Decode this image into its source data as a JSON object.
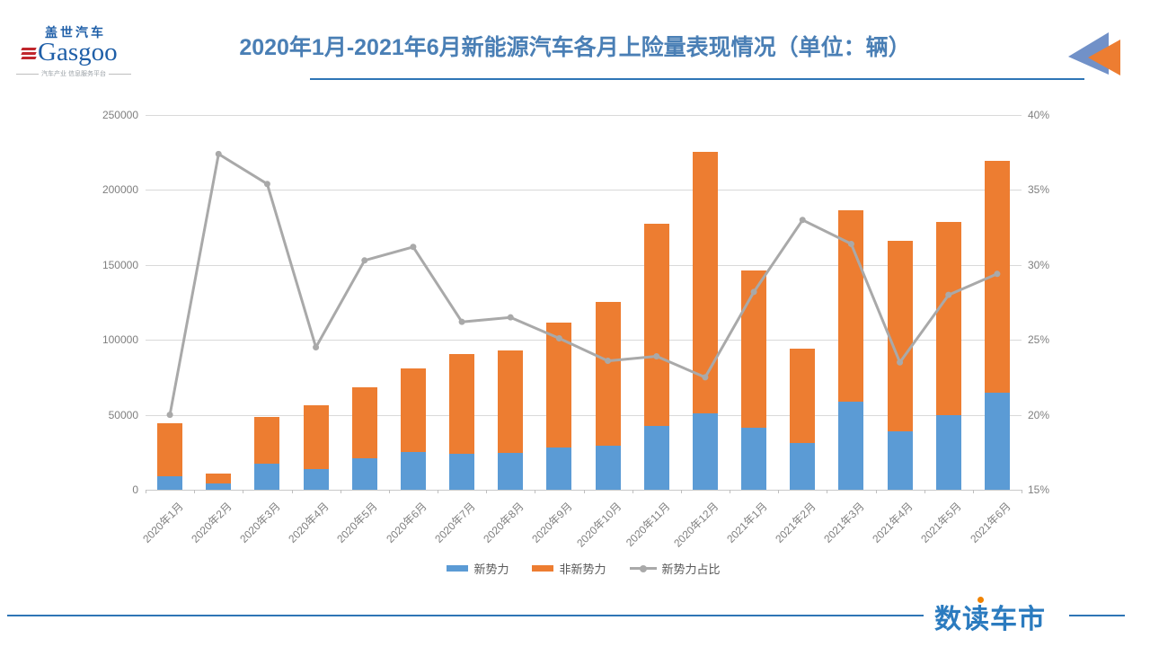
{
  "header": {
    "logo": {
      "cn": "盖世汽车",
      "en": "Gasgoo",
      "tagline": "汽车产业 信息服务平台"
    },
    "title": "2020年1月-2021年6月新能源汽车各月上险量表现情况（单位：辆）"
  },
  "chart_data": {
    "type": "bar",
    "stacked": true,
    "title": "2020年1月-2021年6月新能源汽车各月上险量表现情况（单位：辆）",
    "categories": [
      "2020年1月",
      "2020年2月",
      "2020年3月",
      "2020年4月",
      "2020年5月",
      "2020年6月",
      "2020年7月",
      "2020年8月",
      "2020年9月",
      "2020年10月",
      "2020年11月",
      "2020年12月",
      "2021年1月",
      "2021年2月",
      "2021年3月",
      "2021年4月",
      "2021年5月",
      "2021年6月"
    ],
    "series": [
      {
        "name": "新势力",
        "type": "bar",
        "color": "#5B9BD5",
        "axis": "left",
        "values": [
          8800,
          4000,
          17300,
          13800,
          20800,
          25200,
          23800,
          24600,
          28000,
          29500,
          42300,
          50800,
          41200,
          31000,
          58500,
          39000,
          49900,
          64500
        ]
      },
      {
        "name": "非新势力",
        "type": "bar",
        "color": "#ED7D31",
        "axis": "left",
        "values": [
          35300,
          6700,
          31500,
          42400,
          47800,
          55600,
          66900,
          68100,
          83700,
          95600,
          135000,
          174600,
          104900,
          62900,
          127800,
          127000,
          128500,
          155000
        ]
      },
      {
        "name": "新势力占比",
        "type": "line",
        "color": "#A9A9A9",
        "axis": "right",
        "values_pct": [
          20.0,
          37.4,
          35.4,
          24.5,
          30.3,
          31.2,
          26.2,
          26.5,
          25.1,
          23.6,
          23.9,
          22.5,
          28.2,
          33.0,
          31.4,
          23.5,
          28.0,
          29.4
        ]
      }
    ],
    "left_axis": {
      "min": 0,
      "max": 250000,
      "ticks": [
        "250000",
        "200000",
        "150000",
        "100000",
        "50000",
        "0"
      ]
    },
    "right_axis": {
      "min": 15,
      "max": 40,
      "ticks": [
        "40%",
        "35%",
        "30%",
        "25%",
        "20%",
        "15%"
      ]
    },
    "grid": true,
    "legend_position": "bottom"
  },
  "footer": {
    "logo": "数读车市"
  },
  "colors": {
    "title": "#4A7FB5",
    "underline": "#2E75B6",
    "bar_blue": "#5B9BD5",
    "bar_orange": "#ED7D31",
    "line_gray": "#A9A9A9",
    "gridline": "#D9D9D9",
    "axis_text": "#7F7F7F",
    "triangle_blue": "#7191C8",
    "triangle_orange": "#ED7D31"
  }
}
